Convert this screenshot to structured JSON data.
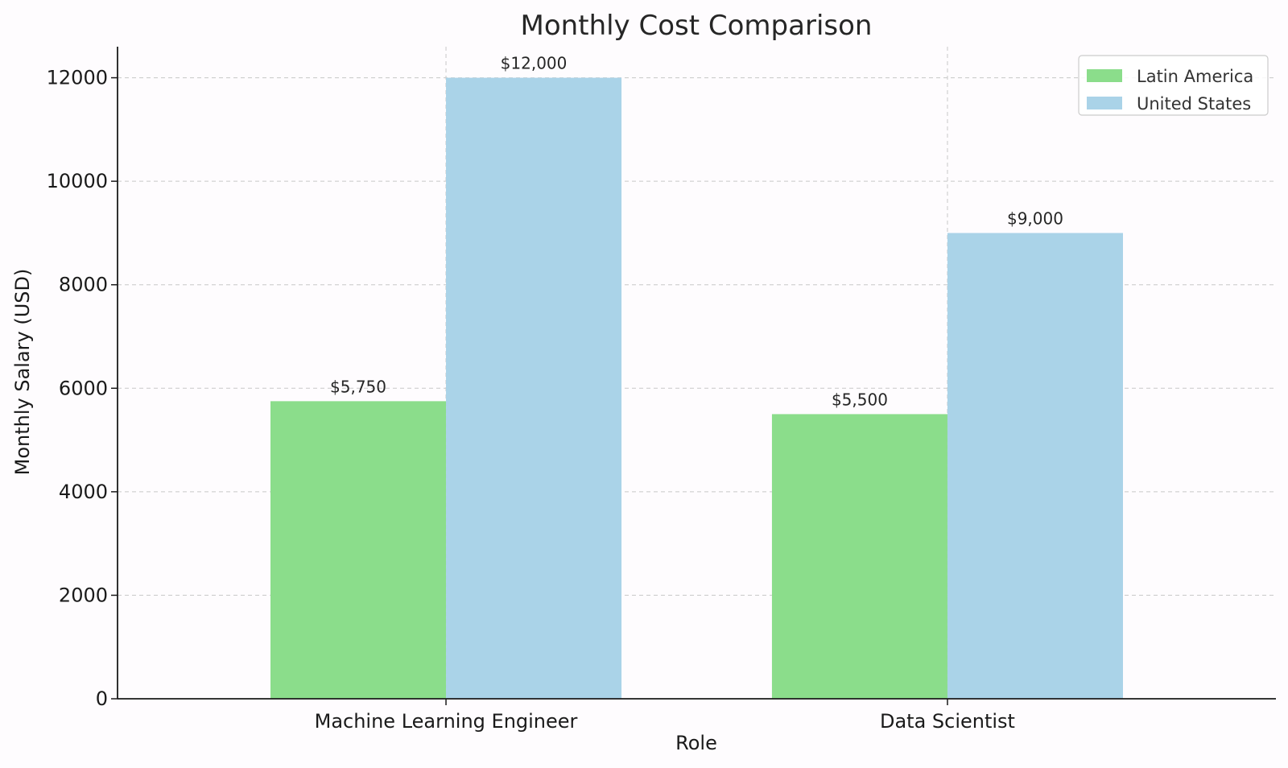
{
  "chart_data": {
    "type": "bar",
    "title": "Monthly Cost Comparison",
    "xlabel": "Role",
    "ylabel": "Monthly Salary (USD)",
    "categories": [
      "Machine Learning Engineer",
      "Data Scientist"
    ],
    "series": [
      {
        "name": "Latin America",
        "color": "#8bdd8b",
        "values": [
          5750,
          5500
        ],
        "labels": [
          "$5,750",
          "$5,500"
        ]
      },
      {
        "name": "United States",
        "color": "#aad3e8",
        "values": [
          12000,
          9000
        ],
        "labels": [
          "$12,000",
          "$9,000"
        ]
      }
    ],
    "ylim": [
      0,
      12600
    ],
    "yticks": [
      0,
      2000,
      4000,
      6000,
      8000,
      10000,
      12000
    ],
    "ytick_labels": [
      "0",
      "2000",
      "4000",
      "6000",
      "8000",
      "10000",
      "12000"
    ],
    "grid": true,
    "grid_style": "dashed",
    "legend_position": "top-right"
  }
}
